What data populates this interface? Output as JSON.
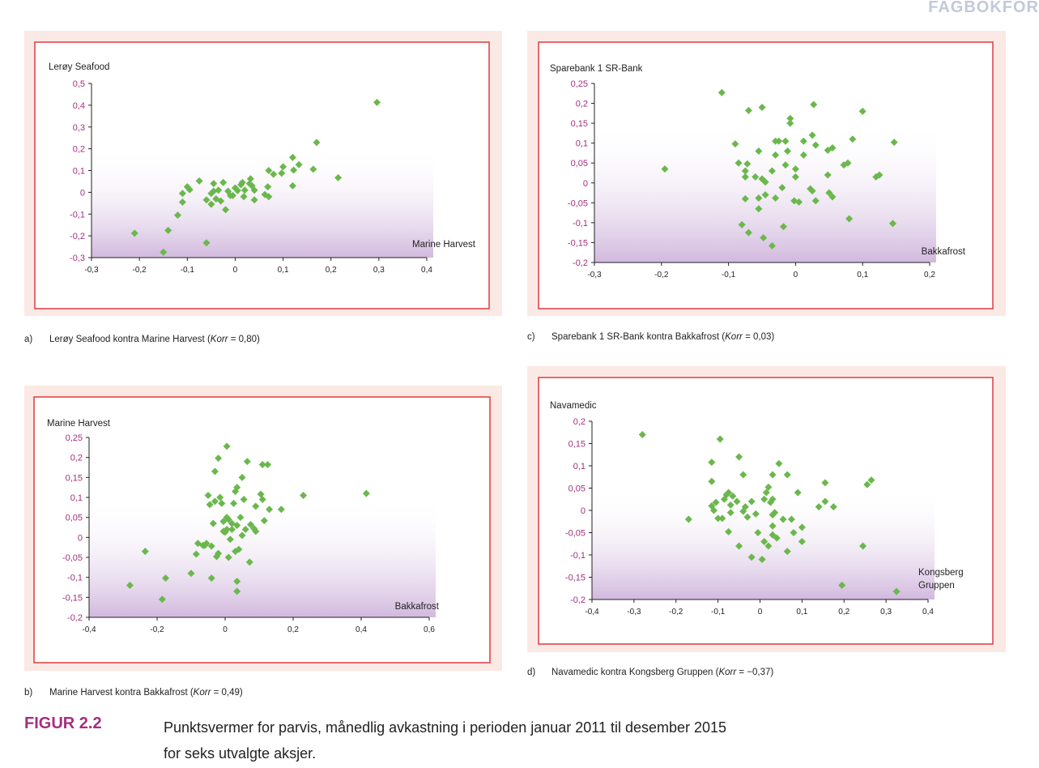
{
  "header": {
    "text": "FAGBOKFOR"
  },
  "colors": {
    "point": "#6ab84c",
    "border": "#df3b3f",
    "panel": "#fbe9e5",
    "yticks": "#a42f7e",
    "gradient": "#d2b9de"
  },
  "panels": {
    "a": {
      "letter": "a)",
      "text_before": "Lerøy Seafood kontra Marine Harvest (",
      "korr_label": "Korr",
      "korr_value": " = 0,80)"
    },
    "b": {
      "letter": "b)",
      "text_before": "Marine Harvest kontra Bakkafrost (",
      "korr_label": "Korr",
      "korr_value": " = 0,49)"
    },
    "c": {
      "letter": "c)",
      "text_before": "Sparebank 1 SR-Bank kontra Bakkafrost (",
      "korr_label": "Korr",
      "korr_value": " = 0,03)"
    },
    "d": {
      "letter": "d)",
      "text_before": "Navamedic kontra Kongsberg Gruppen (",
      "korr_label": "Korr",
      "korr_value": " = −0,37)"
    }
  },
  "figure": {
    "label": "FIGUR 2.2",
    "caption": "Punktsvermer for parvis, månedlig avkastning i perioden januar 2011 til desember 2015 for seks utvalgte aksjer."
  },
  "chart_data": [
    {
      "id": "a",
      "type": "scatter",
      "title": "",
      "xlabel": "Marine Harvest",
      "ylabel": "Lerøy Seafood",
      "xlim": [
        -0.3,
        0.4
      ],
      "ylim": [
        -0.3,
        0.5
      ],
      "xticks": [
        -0.3,
        -0.2,
        -0.1,
        0,
        0.1,
        0.2,
        0.3,
        0.4
      ],
      "yticks": [
        -0.3,
        -0.2,
        -0.1,
        0,
        0.1,
        0.2,
        0.3,
        0.4,
        0.5
      ],
      "xtick_labels": [
        "-0,3",
        "-0,2",
        "-0,1",
        "0",
        "0,1",
        "0,2",
        "0,3",
        "0,4"
      ],
      "ytick_labels": [
        "-0,3",
        "-0,2",
        "-0,1",
        "0",
        "0,1",
        "0,2",
        "0,3",
        "0,4",
        "0,5"
      ],
      "points": [
        [
          0.296,
          0.413
        ],
        [
          0.17,
          0.229
        ],
        [
          0.215,
          0.067
        ],
        [
          0.163,
          0.106
        ],
        [
          0.133,
          0.127
        ],
        [
          0.12,
          0.16
        ],
        [
          0.122,
          0.102
        ],
        [
          0.12,
          0.03
        ],
        [
          0.1,
          0.117
        ],
        [
          0.097,
          0.088
        ],
        [
          0.08,
          0.083
        ],
        [
          0.07,
          0.1
        ],
        [
          0.068,
          0.025
        ],
        [
          0.07,
          -0.02
        ],
        [
          0.062,
          -0.01
        ],
        [
          0.04,
          0.01
        ],
        [
          0.04,
          -0.035
        ],
        [
          0.035,
          0.03
        ],
        [
          0.032,
          0.062
        ],
        [
          0.03,
          0.04
        ],
        [
          0.02,
          0.01
        ],
        [
          0.018,
          -0.02
        ],
        [
          0.015,
          0.045
        ],
        [
          0.012,
          0.035
        ],
        [
          0.005,
          0.008
        ],
        [
          0.0,
          0.02
        ],
        [
          -0.005,
          -0.015
        ],
        [
          -0.01,
          -0.015
        ],
        [
          -0.015,
          0.005
        ],
        [
          -0.02,
          -0.08
        ],
        [
          -0.025,
          0.045
        ],
        [
          -0.03,
          -0.04
        ],
        [
          -0.035,
          0.01
        ],
        [
          -0.04,
          -0.03
        ],
        [
          -0.045,
          0.04
        ],
        [
          -0.045,
          0.005
        ],
        [
          -0.05,
          -0.005
        ],
        [
          -0.05,
          -0.055
        ],
        [
          -0.06,
          -0.035
        ],
        [
          -0.06,
          -0.232
        ],
        [
          -0.075,
          0.052
        ],
        [
          -0.1,
          0.025
        ],
        [
          -0.095,
          0.012
        ],
        [
          -0.11,
          -0.005
        ],
        [
          -0.11,
          -0.045
        ],
        [
          -0.12,
          -0.105
        ],
        [
          -0.14,
          -0.175
        ],
        [
          -0.15,
          -0.275
        ],
        [
          -0.21,
          -0.188
        ]
      ]
    },
    {
      "id": "b",
      "type": "scatter",
      "title": "",
      "xlabel": "Bakkafrost",
      "ylabel": "Marine Harvest",
      "xlim": [
        -0.4,
        0.6
      ],
      "ylim": [
        -0.2,
        0.25
      ],
      "xticks": [
        -0.4,
        -0.2,
        0,
        0.2,
        0.4,
        0.6
      ],
      "yticks": [
        -0.2,
        -0.15,
        -0.1,
        -0.05,
        0,
        0.05,
        0.1,
        0.15,
        0.2,
        0.25
      ],
      "xtick_labels": [
        "-0,4",
        "-0,2",
        "0",
        "0,2",
        "0,4",
        "0,6"
      ],
      "ytick_labels": [
        "-0,2",
        "-0,15",
        "-0,1",
        "-0,05",
        "0",
        "0,05",
        "0,1",
        "0,15",
        "0,2",
        "0,25"
      ],
      "points": [
        [
          0.415,
          0.11
        ],
        [
          0.23,
          0.105
        ],
        [
          0.165,
          0.07
        ],
        [
          0.125,
          0.182
        ],
        [
          0.11,
          0.182
        ],
        [
          0.11,
          0.095
        ],
        [
          0.105,
          0.108
        ],
        [
          0.115,
          0.042
        ],
        [
          0.13,
          0.07
        ],
        [
          0.09,
          0.078
        ],
        [
          0.09,
          0.015
        ],
        [
          0.085,
          0.022
        ],
        [
          0.075,
          0.032
        ],
        [
          0.065,
          0.19
        ],
        [
          0.072,
          -0.062
        ],
        [
          0.06,
          0.02
        ],
        [
          0.055,
          0.095
        ],
        [
          0.05,
          0.15
        ],
        [
          0.05,
          0.005
        ],
        [
          0.045,
          0.05
        ],
        [
          0.035,
          0.125
        ],
        [
          0.03,
          0.115
        ],
        [
          0.035,
          0.03
        ],
        [
          0.035,
          -0.11
        ],
        [
          0.035,
          -0.135
        ],
        [
          0.04,
          -0.03
        ],
        [
          0.03,
          -0.035
        ],
        [
          0.025,
          0.085
        ],
        [
          0.02,
          0.035
        ],
        [
          0.02,
          0.02
        ],
        [
          0.015,
          -0.005
        ],
        [
          0.01,
          0.045
        ],
        [
          0.01,
          -0.05
        ],
        [
          0.005,
          0.228
        ],
        [
          0.005,
          0.05
        ],
        [
          0.005,
          0.02
        ],
        [
          0.0,
          0.013
        ],
        [
          -0.005,
          0.04
        ],
        [
          -0.005,
          0.015
        ],
        [
          -0.01,
          0.085
        ],
        [
          -0.015,
          0.1
        ],
        [
          -0.02,
          0.198
        ],
        [
          -0.02,
          -0.04
        ],
        [
          -0.025,
          -0.048
        ],
        [
          -0.03,
          0.165
        ],
        [
          -0.03,
          0.09
        ],
        [
          -0.035,
          0.035
        ],
        [
          -0.04,
          -0.022
        ],
        [
          -0.04,
          -0.102
        ],
        [
          -0.045,
          0.082
        ],
        [
          -0.05,
          0.105
        ],
        [
          -0.055,
          -0.015
        ],
        [
          -0.06,
          -0.02
        ],
        [
          -0.065,
          -0.02
        ],
        [
          -0.08,
          -0.015
        ],
        [
          -0.1,
          -0.09
        ],
        [
          -0.085,
          -0.042
        ],
        [
          -0.175,
          -0.102
        ],
        [
          -0.185,
          -0.155
        ],
        [
          -0.235,
          -0.035
        ],
        [
          -0.28,
          -0.12
        ]
      ]
    },
    {
      "id": "c",
      "type": "scatter",
      "title": "",
      "xlabel": "Bakkafrost",
      "ylabel": "Sparebank 1 SR-Bank",
      "xlim": [
        -0.3,
        0.2
      ],
      "ylim": [
        -0.2,
        0.25
      ],
      "xticks": [
        -0.3,
        -0.2,
        -0.1,
        0,
        0.1,
        0.2
      ],
      "yticks": [
        -0.2,
        -0.15,
        -0.1,
        -0.05,
        0,
        0.05,
        0.1,
        0.15,
        0.2,
        0.25
      ],
      "xtick_labels": [
        "-0,3",
        "-0,2",
        "-0,1",
        "0",
        "0,1",
        "0,2"
      ],
      "ytick_labels": [
        "-0,2",
        "-0,15",
        "-0,1",
        "-0,05",
        "0",
        "0,05",
        "0,1",
        "0,15",
        "0,2",
        "0,25"
      ],
      "points": [
        [
          -0.11,
          0.227
        ],
        [
          -0.05,
          0.19
        ],
        [
          -0.07,
          0.182
        ],
        [
          0.027,
          0.197
        ],
        [
          0.1,
          0.18
        ],
        [
          -0.008,
          0.162
        ],
        [
          -0.008,
          0.15
        ],
        [
          0.025,
          0.12
        ],
        [
          0.085,
          0.11
        ],
        [
          0.147,
          0.102
        ],
        [
          -0.09,
          0.098
        ],
        [
          -0.03,
          0.105
        ],
        [
          -0.025,
          0.105
        ],
        [
          -0.015,
          0.105
        ],
        [
          0.012,
          0.105
        ],
        [
          0.03,
          0.095
        ],
        [
          0.055,
          0.088
        ],
        [
          0.048,
          0.082
        ],
        [
          -0.055,
          0.08
        ],
        [
          -0.012,
          0.08
        ],
        [
          0.012,
          0.07
        ],
        [
          -0.03,
          0.07
        ],
        [
          0.078,
          0.05
        ],
        [
          0.072,
          0.045
        ],
        [
          -0.085,
          0.05
        ],
        [
          -0.072,
          0.048
        ],
        [
          -0.015,
          0.045
        ],
        [
          0.0,
          0.035
        ],
        [
          -0.035,
          0.03
        ],
        [
          -0.075,
          0.03
        ],
        [
          0.048,
          0.02
        ],
        [
          0.125,
          0.02
        ],
        [
          0.12,
          0.015
        ],
        [
          -0.06,
          0.015
        ],
        [
          -0.075,
          0.015
        ],
        [
          -0.05,
          0.01
        ],
        [
          -0.045,
          0.002
        ],
        [
          0.0,
          0.015
        ],
        [
          -0.02,
          -0.012
        ],
        [
          0.022,
          -0.015
        ],
        [
          0.025,
          -0.02
        ],
        [
          -0.045,
          -0.03
        ],
        [
          -0.03,
          -0.038
        ],
        [
          -0.055,
          -0.038
        ],
        [
          -0.075,
          -0.04
        ],
        [
          0.05,
          -0.025
        ],
        [
          0.055,
          -0.035
        ],
        [
          -0.002,
          -0.045
        ],
        [
          0.005,
          -0.048
        ],
        [
          0.03,
          -0.045
        ],
        [
          -0.055,
          -0.065
        ],
        [
          0.08,
          -0.09
        ],
        [
          0.145,
          -0.102
        ],
        [
          -0.08,
          -0.105
        ],
        [
          -0.018,
          -0.11
        ],
        [
          -0.07,
          -0.125
        ],
        [
          -0.048,
          -0.138
        ],
        [
          -0.035,
          -0.158
        ],
        [
          -0.195,
          0.035
        ]
      ]
    },
    {
      "id": "d",
      "type": "scatter",
      "title": "",
      "xlabel": "Kongsberg Gruppen",
      "ylabel": "Navamedic",
      "xlim": [
        -0.4,
        0.4
      ],
      "ylim": [
        -0.2,
        0.2
      ],
      "xticks": [
        -0.4,
        -0.3,
        -0.2,
        -0.1,
        0,
        0.1,
        0.2,
        0.3,
        0.4
      ],
      "yticks": [
        -0.2,
        -0.15,
        -0.1,
        -0.05,
        0,
        0.05,
        0.1,
        0.15,
        0.2
      ],
      "xtick_labels": [
        "-0,4",
        "-0,3",
        "-0,2",
        "-0,1",
        "0",
        "0,1",
        "0,2",
        "0,3",
        "0,4"
      ],
      "ytick_labels": [
        "-0,2",
        "-0,15",
        "-0,1",
        "-0,05",
        "0",
        "0,05",
        "0,1",
        "0,15",
        "0,2"
      ],
      "points": [
        [
          -0.28,
          0.17
        ],
        [
          -0.095,
          0.16
        ],
        [
          -0.05,
          0.12
        ],
        [
          -0.115,
          0.108
        ],
        [
          0.045,
          0.105
        ],
        [
          -0.04,
          0.08
        ],
        [
          0.03,
          0.08
        ],
        [
          0.065,
          0.08
        ],
        [
          0.265,
          0.068
        ],
        [
          0.255,
          0.058
        ],
        [
          0.155,
          0.062
        ],
        [
          -0.115,
          0.065
        ],
        [
          0.02,
          0.052
        ],
        [
          -0.075,
          0.04
        ],
        [
          -0.08,
          0.035
        ],
        [
          0.09,
          0.04
        ],
        [
          -0.065,
          0.032
        ],
        [
          0.015,
          0.04
        ],
        [
          0.01,
          0.025
        ],
        [
          0.03,
          0.025
        ],
        [
          -0.085,
          0.025
        ],
        [
          0.025,
          0.018
        ],
        [
          -0.02,
          0.02
        ],
        [
          -0.055,
          0.02
        ],
        [
          -0.105,
          0.018
        ],
        [
          -0.115,
          0.01
        ],
        [
          0.155,
          0.02
        ],
        [
          -0.07,
          0.012
        ],
        [
          0.14,
          0.008
        ],
        [
          0.175,
          0.008
        ],
        [
          -0.035,
          0.008
        ],
        [
          -0.11,
          0.0
        ],
        [
          -0.04,
          -0.002
        ],
        [
          -0.07,
          -0.005
        ],
        [
          0.035,
          -0.005
        ],
        [
          -0.01,
          -0.008
        ],
        [
          0.03,
          -0.01
        ],
        [
          -0.03,
          -0.015
        ],
        [
          -0.1,
          -0.018
        ],
        [
          -0.09,
          -0.018
        ],
        [
          -0.17,
          -0.02
        ],
        [
          0.055,
          -0.02
        ],
        [
          0.075,
          -0.02
        ],
        [
          0.03,
          -0.035
        ],
        [
          0.1,
          -0.038
        ],
        [
          -0.075,
          -0.048
        ],
        [
          0.08,
          -0.05
        ],
        [
          -0.005,
          -0.05
        ],
        [
          0.03,
          -0.055
        ],
        [
          0.04,
          -0.062
        ],
        [
          0.01,
          -0.07
        ],
        [
          0.1,
          -0.07
        ],
        [
          0.02,
          -0.08
        ],
        [
          -0.05,
          -0.08
        ],
        [
          0.245,
          -0.08
        ],
        [
          0.065,
          -0.092
        ],
        [
          -0.02,
          -0.105
        ],
        [
          0.005,
          -0.11
        ],
        [
          0.195,
          -0.168
        ],
        [
          0.325,
          -0.182
        ]
      ]
    }
  ]
}
